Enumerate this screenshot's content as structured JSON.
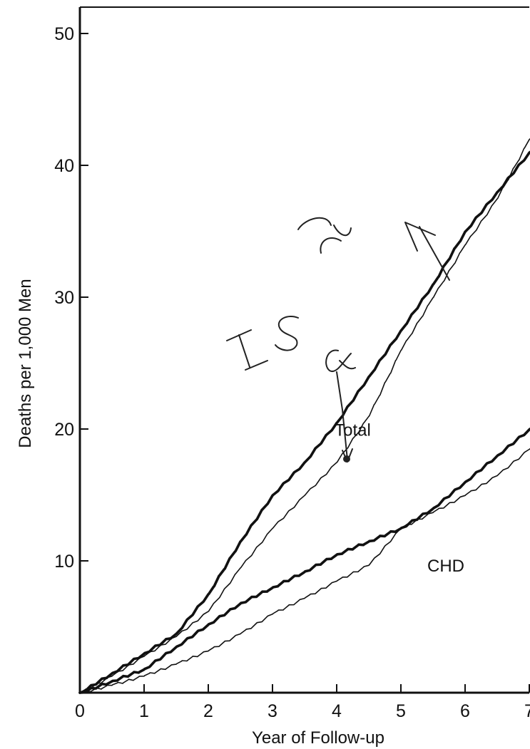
{
  "chart_data": {
    "type": "line",
    "xlabel": "Year of Follow-up",
    "ylabel": "Deaths per 1,000 Men",
    "xlim": [
      0,
      7
    ],
    "ylim": [
      0,
      52
    ],
    "x_ticks": [
      "0",
      "1",
      "2",
      "3",
      "4",
      "5",
      "6",
      "7"
    ],
    "y_ticks": [
      "10",
      "20",
      "30",
      "40",
      "50"
    ],
    "y_tick_values": [
      10,
      20,
      30,
      40,
      50
    ],
    "grid": false,
    "series": [
      {
        "group": "Total",
        "style": "thick",
        "x": [
          0,
          0.5,
          1,
          1.5,
          2,
          2.5,
          3,
          3.5,
          4,
          4.5,
          5,
          5.5,
          6,
          6.5,
          7
        ],
        "y": [
          0,
          1.5,
          3,
          4.5,
          7.5,
          11.5,
          15,
          17.5,
          20.5,
          24,
          27.5,
          31,
          35,
          38,
          41
        ]
      },
      {
        "group": "Total",
        "style": "thin",
        "x": [
          0,
          0.5,
          1,
          1.5,
          2,
          2.5,
          3,
          3.5,
          4,
          4.5,
          5,
          5.5,
          6,
          6.5,
          7
        ],
        "y": [
          0,
          1.3,
          2.8,
          4.3,
          6.2,
          9.5,
          12.5,
          15,
          17.5,
          21,
          26,
          30,
          34,
          37.5,
          42
        ]
      },
      {
        "group": "CHD",
        "style": "thick",
        "x": [
          0,
          0.5,
          1,
          1.5,
          2,
          2.5,
          3,
          3.5,
          4,
          4.5,
          5,
          5.5,
          6,
          6.5,
          7
        ],
        "y": [
          0,
          0.9,
          1.8,
          3.5,
          5.2,
          6.8,
          8,
          9.2,
          10.5,
          11.5,
          12.5,
          14,
          16,
          18,
          20
        ]
      },
      {
        "group": "CHD",
        "style": "thin",
        "x": [
          0,
          0.5,
          1,
          1.5,
          2,
          2.5,
          3,
          3.5,
          4,
          4.5,
          5,
          5.5,
          6,
          6.5,
          7
        ],
        "y": [
          0,
          0.6,
          1.3,
          2.2,
          3.2,
          4.5,
          6,
          7.2,
          8.5,
          9.7,
          12.5,
          13.7,
          15,
          16.5,
          18.5
        ]
      }
    ],
    "annotations": [
      {
        "text": "Total",
        "x": 4.25,
        "y": 19.5
      },
      {
        "text": "CHD",
        "x": 5.7,
        "y": 9.2
      }
    ]
  }
}
